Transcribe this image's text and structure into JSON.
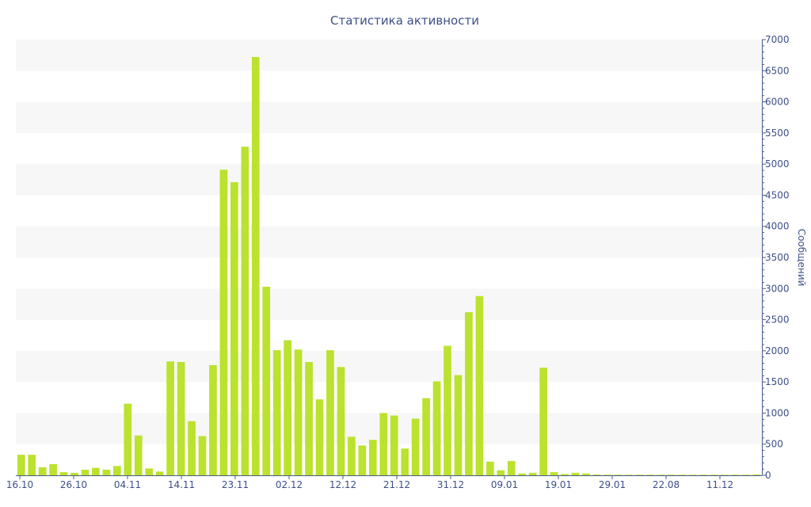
{
  "chart_data": {
    "type": "bar",
    "title": "Статистика активности",
    "ylabel": "Сообщений",
    "xlabel": "",
    "ylim": [
      0,
      7000
    ],
    "y_ticks": [
      0,
      500,
      1000,
      1500,
      2000,
      2500,
      3000,
      3500,
      4000,
      4500,
      5000,
      5500,
      6000,
      6500,
      7000
    ],
    "y_axis_position": "right",
    "grid": "alternating bands",
    "bar_color": "#bbe22e",
    "x_tick_labels": [
      "16.10",
      "26.10",
      "04.11",
      "14.11",
      "23.11",
      "02.12",
      "12.12",
      "21.12",
      "31.12",
      "09.01",
      "19.01",
      "29.01",
      "22.08",
      "11.12"
    ],
    "values": [
      330,
      330,
      130,
      180,
      50,
      40,
      90,
      120,
      90,
      150,
      1150,
      640,
      110,
      60,
      1830,
      1820,
      870,
      630,
      1770,
      4910,
      4710,
      5280,
      6720,
      3030,
      2010,
      2170,
      2020,
      1820,
      1220,
      2010,
      1740,
      620,
      480,
      570,
      1000,
      960,
      430,
      910,
      1240,
      1510,
      2080,
      1610,
      2620,
      2880,
      220,
      80,
      230,
      30,
      40,
      1730,
      50,
      20,
      40,
      30,
      15,
      10,
      10,
      10,
      10,
      10,
      10,
      10,
      10,
      10,
      10,
      10,
      10,
      10,
      10,
      15
    ]
  }
}
